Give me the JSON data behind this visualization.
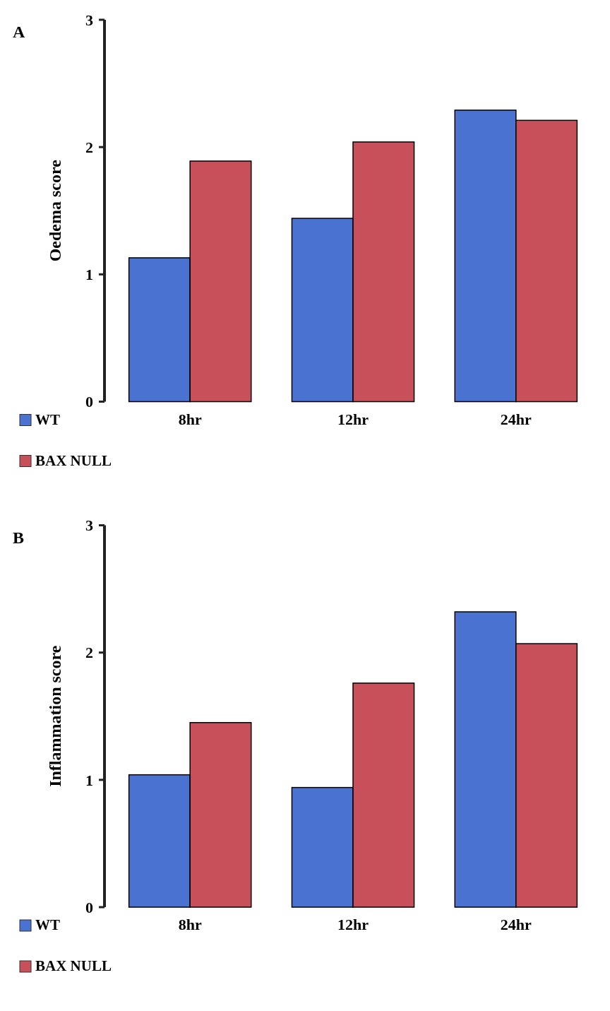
{
  "chart_data": [
    {
      "type": "bar",
      "title": "A",
      "ylabel": "Oedema score",
      "categories": [
        "8hr",
        "12hr",
        "24hr"
      ],
      "series": [
        {
          "name": "WT",
          "color": "#4a72d0",
          "values": [
            1.13,
            1.44,
            2.29
          ]
        },
        {
          "name": "BAX NULL",
          "color": "#c8505a",
          "values": [
            1.89,
            2.04,
            2.21
          ]
        }
      ],
      "ylim": [
        0,
        3
      ],
      "yticks": [
        0,
        1,
        2,
        3
      ],
      "grid": false,
      "legend": "bottom left"
    },
    {
      "type": "bar",
      "title": "B",
      "ylabel": "Inflammation score",
      "categories": [
        "8hr",
        "12hr",
        "24hr"
      ],
      "series": [
        {
          "name": "WT",
          "color": "#4a72d0",
          "values": [
            1.04,
            0.94,
            2.32
          ]
        },
        {
          "name": "BAX NULL",
          "color": "#c8505a",
          "values": [
            1.45,
            1.76,
            2.07
          ]
        }
      ],
      "ylim": [
        0,
        3
      ],
      "yticks": [
        0,
        1,
        2,
        3
      ],
      "grid": false,
      "legend": "bottom left"
    }
  ]
}
